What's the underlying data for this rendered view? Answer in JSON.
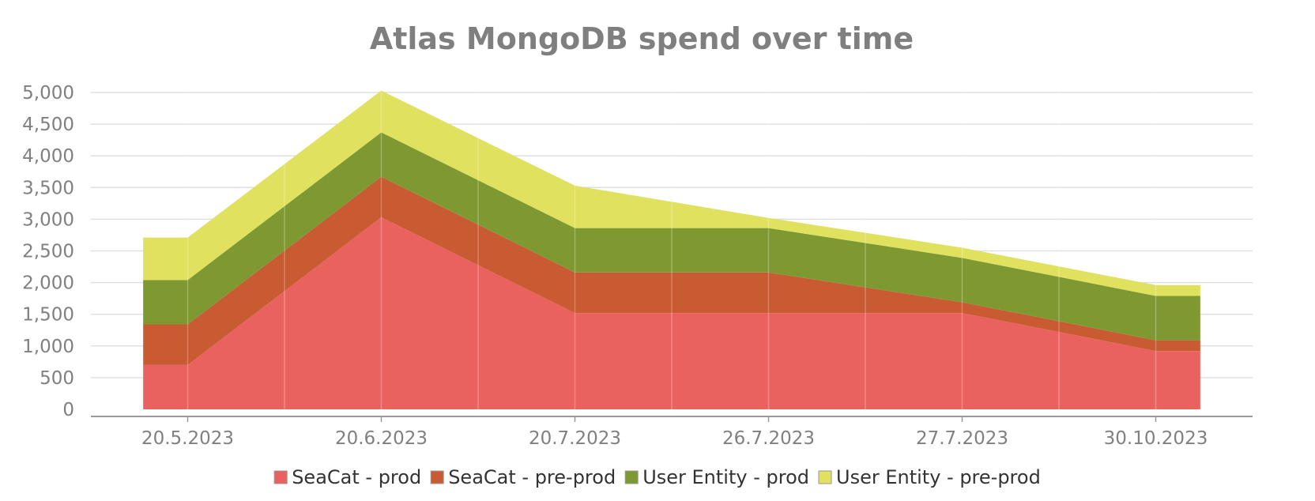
{
  "chart_data": {
    "type": "area",
    "stacked": true,
    "title": "Atlas MongoDB spend over time",
    "xlabel": "",
    "ylabel": "",
    "categories": [
      "20.5.2023",
      "20.6.2023",
      "20.7.2023",
      "26.7.2023",
      "27.7.2023",
      "30.10.2023"
    ],
    "y_ticks": [
      "0",
      "500",
      "1,000",
      "1,500",
      "2,000",
      "2,500",
      "3,000",
      "3,500",
      "4,000",
      "4,500",
      "5,000"
    ],
    "ylim": [
      0,
      5000
    ],
    "grid": true,
    "legend_position": "bottom",
    "series": [
      {
        "name": "SeaCat - prod",
        "color": "#ea625f",
        "values": [
          700,
          3030,
          1520,
          1520,
          1520,
          920
        ]
      },
      {
        "name": "SeaCat - pre-prod",
        "color": "#c85b32",
        "values": [
          640,
          640,
          640,
          640,
          170,
          170
        ]
      },
      {
        "name": "User Entity - prod",
        "color": "#7f9932",
        "values": [
          700,
          700,
          700,
          700,
          700,
          700
        ]
      },
      {
        "name": "User Entity - pre-prod",
        "color": "#dfe15f",
        "values": [
          670,
          660,
          670,
          160,
          160,
          170
        ]
      }
    ]
  }
}
